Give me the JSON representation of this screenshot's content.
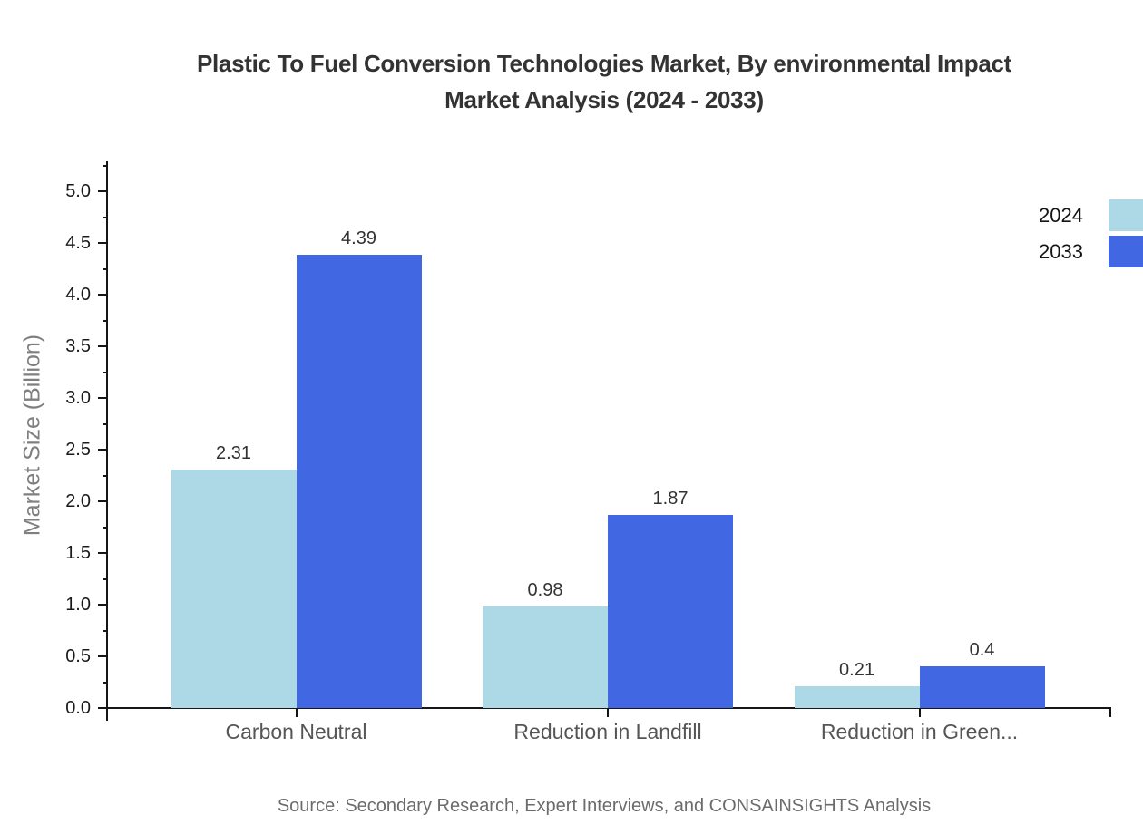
{
  "title": {
    "line1": "Plastic To Fuel Conversion Technologies Market, By environmental Impact",
    "line2": "Market Analysis (2024 - 2033)"
  },
  "source": "Source: Secondary Research, Expert Interviews, and CONSAINSIGHTS Analysis",
  "colors": {
    "series_2024": "#ADD8E6",
    "series_2033": "#4267E2",
    "axis": "#161616",
    "title_text": "#333333",
    "category_text": "#555555",
    "source_text": "#6B6B6B"
  },
  "chart_data": {
    "type": "bar",
    "title": "Plastic To Fuel Conversion Technologies Market, By environmental Impact Market Analysis (2024 - 2033)",
    "categories": [
      "Carbon Neutral",
      "Reduction in Landfill",
      "Reduction in Green..."
    ],
    "series": [
      {
        "name": "2024",
        "color": "#ADD8E6",
        "values": [
          2.31,
          0.98,
          0.21
        ]
      },
      {
        "name": "2033",
        "color": "#4267E2",
        "values": [
          4.39,
          1.87,
          0.4
        ]
      }
    ],
    "value_labels": [
      [
        "2.31",
        "0.98",
        "0.21"
      ],
      [
        "4.39",
        "1.87",
        "0.4"
      ]
    ],
    "xlabel": "",
    "ylabel": "Market Size (Billion)",
    "ylim": [
      0.0,
      5.0
    ],
    "ytick_step": 0.5,
    "ytick_labels": [
      "0.0",
      "0.5",
      "1.0",
      "1.5",
      "2.0",
      "2.5",
      "3.0",
      "3.5",
      "4.0",
      "4.5",
      "5.0"
    ],
    "grid": false,
    "legend_position": "top-right"
  }
}
